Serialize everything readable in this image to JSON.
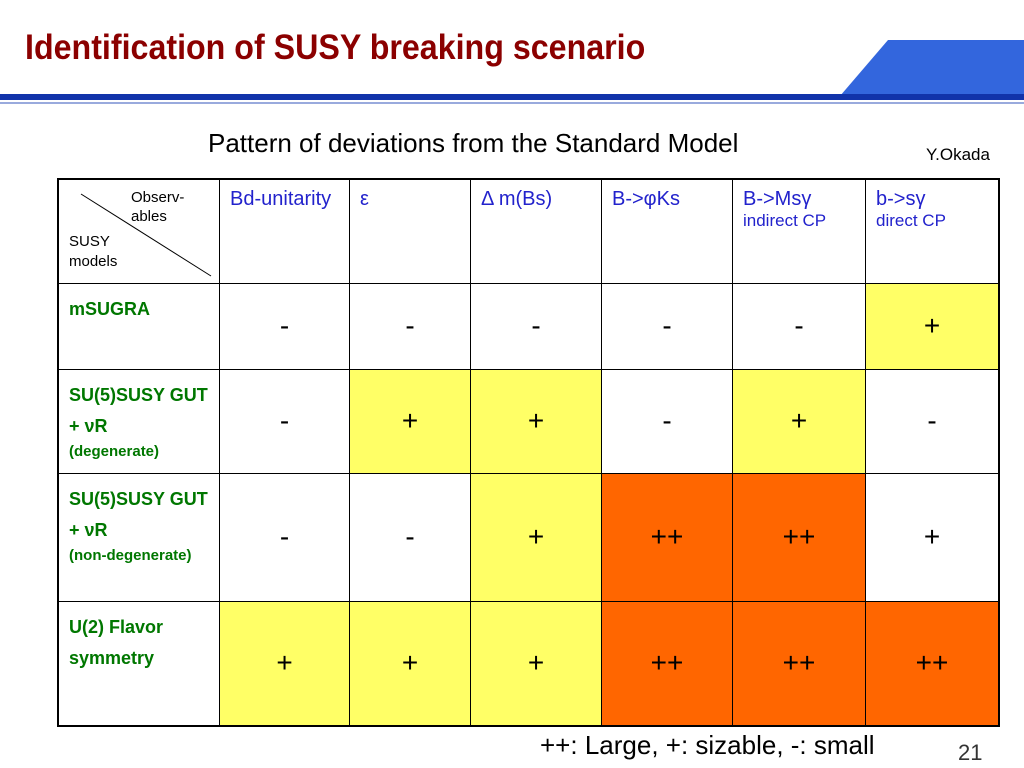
{
  "header": {
    "title": "Identification of SUSY breaking scenario"
  },
  "subtitle": "Pattern of deviations from the Standard Model",
  "author": "Y.Okada",
  "table": {
    "corner": {
      "top": "Observ-ables",
      "bottom": "SUSY models"
    },
    "columns": [
      {
        "name": "Bd-unitarity"
      },
      {
        "name": "ε"
      },
      {
        "name": "Δ m(Bs)"
      },
      {
        "name": "B->φKs"
      },
      {
        "name": "B->Msγ",
        "note": "indirect CP"
      },
      {
        "name": "b->sγ",
        "note": "direct CP"
      }
    ],
    "rows": [
      {
        "label": "mSUGRA",
        "cells": [
          "-",
          "-",
          "-",
          "-",
          "-",
          "+"
        ]
      },
      {
        "label": "SU(5)SUSY GUT + νR",
        "note": "(degenerate)",
        "cells": [
          "-",
          "+",
          "+",
          "-",
          "+",
          "-"
        ]
      },
      {
        "label": "SU(5)SUSY GUT + νR",
        "note": "(non-degenerate)",
        "cells": [
          "-",
          "-",
          "+",
          "++",
          "++",
          "+"
        ]
      },
      {
        "label": "U(2) Flavor symmetry",
        "cells": [
          "+",
          "+",
          "+",
          "++",
          "++",
          "++"
        ]
      }
    ]
  },
  "footnote": "++: Large, +: sizable, -: small",
  "page_number": "21"
}
